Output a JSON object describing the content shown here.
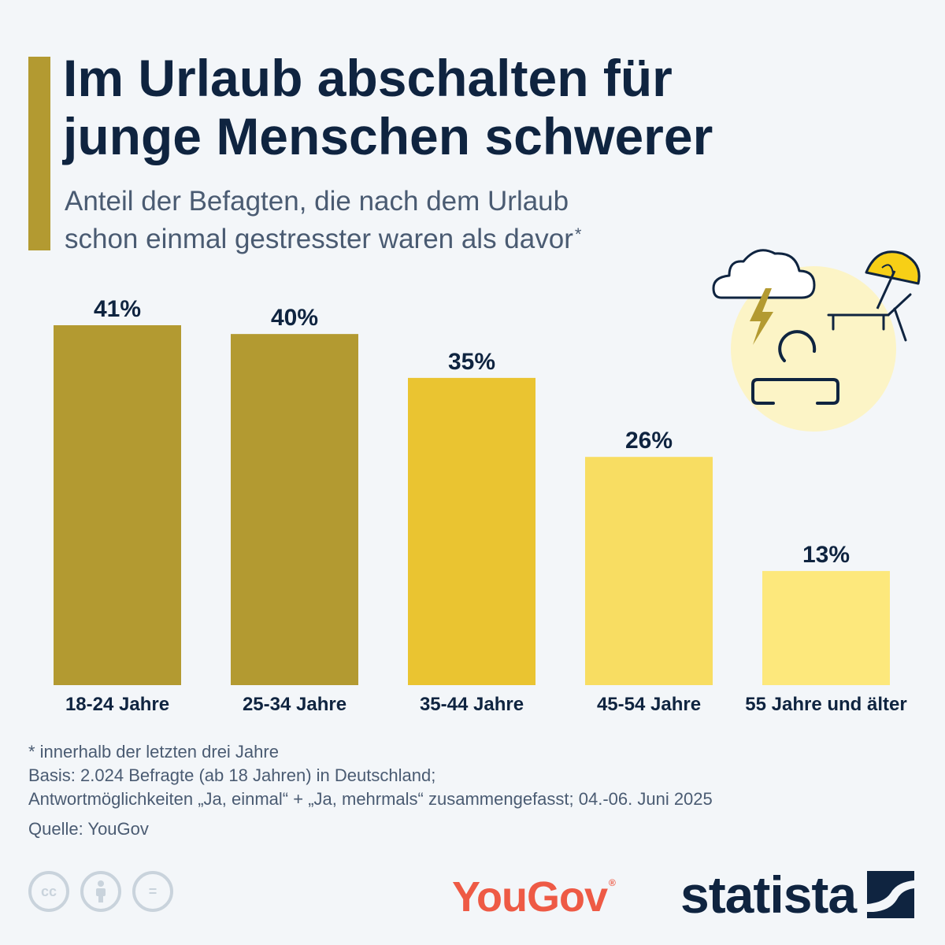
{
  "header": {
    "title_line1": "Im Urlaub abschalten für",
    "title_line2": "junge Menschen schwerer",
    "subtitle_line1": "Anteil der Befagten, die nach dem Urlaub",
    "subtitle_line2": "schon einmal gestresster waren als davor",
    "subtitle_mark": "*"
  },
  "chart_data": {
    "type": "bar",
    "title": "Im Urlaub abschalten für junge Menschen schwerer",
    "subtitle": "Anteil der Befagten, die nach dem Urlaub schon einmal gestresster waren als davor*",
    "categories": [
      "18-24 Jahre",
      "25-34 Jahre",
      "35-44 Jahre",
      "45-54 Jahre",
      "55 Jahre und älter"
    ],
    "values": [
      41,
      40,
      35,
      26,
      13
    ],
    "value_labels": [
      "41%",
      "40%",
      "35%",
      "26%",
      "13%"
    ],
    "unit": "%",
    "ylim": [
      0,
      41
    ],
    "grid": false,
    "legend": "none",
    "xlabel": "",
    "ylabel": "",
    "colors": [
      "#b39a31",
      "#b39a31",
      "#eac431",
      "#f8dd62",
      "#fde87c"
    ]
  },
  "notes": {
    "footnote": "* innerhalb der letzten drei Jahre",
    "basis": "Basis: 2.024 Befragte (ab 18 Jahren) in Deutschland;",
    "answers": "Antwortmöglichkeiten „Ja, einmal“ + „Ja, mehrmals“ zusammengefasst; 04.-06. Juni 2025",
    "source": "Quelle: YouGov"
  },
  "branding": {
    "yougov": "YouGov",
    "yougov_mark": "®",
    "statista": "statista",
    "cc_label": "cc",
    "nd_label": "="
  },
  "colors": {
    "title": "#0f2440",
    "subtitle": "#4a5b72",
    "accent": "#b39a31",
    "background": "#f3f6f9",
    "yougov_red": "#ee5a45",
    "illustration_circle": "#fcf4c6",
    "umbrella": "#f7cf16"
  },
  "icons": [
    "cloud-icon",
    "lightning-icon",
    "person-icon",
    "umbrella-icon",
    "sunbed-icon",
    "cc-icon",
    "attribution-icon",
    "no-derivatives-icon",
    "statista-logo-icon"
  ]
}
